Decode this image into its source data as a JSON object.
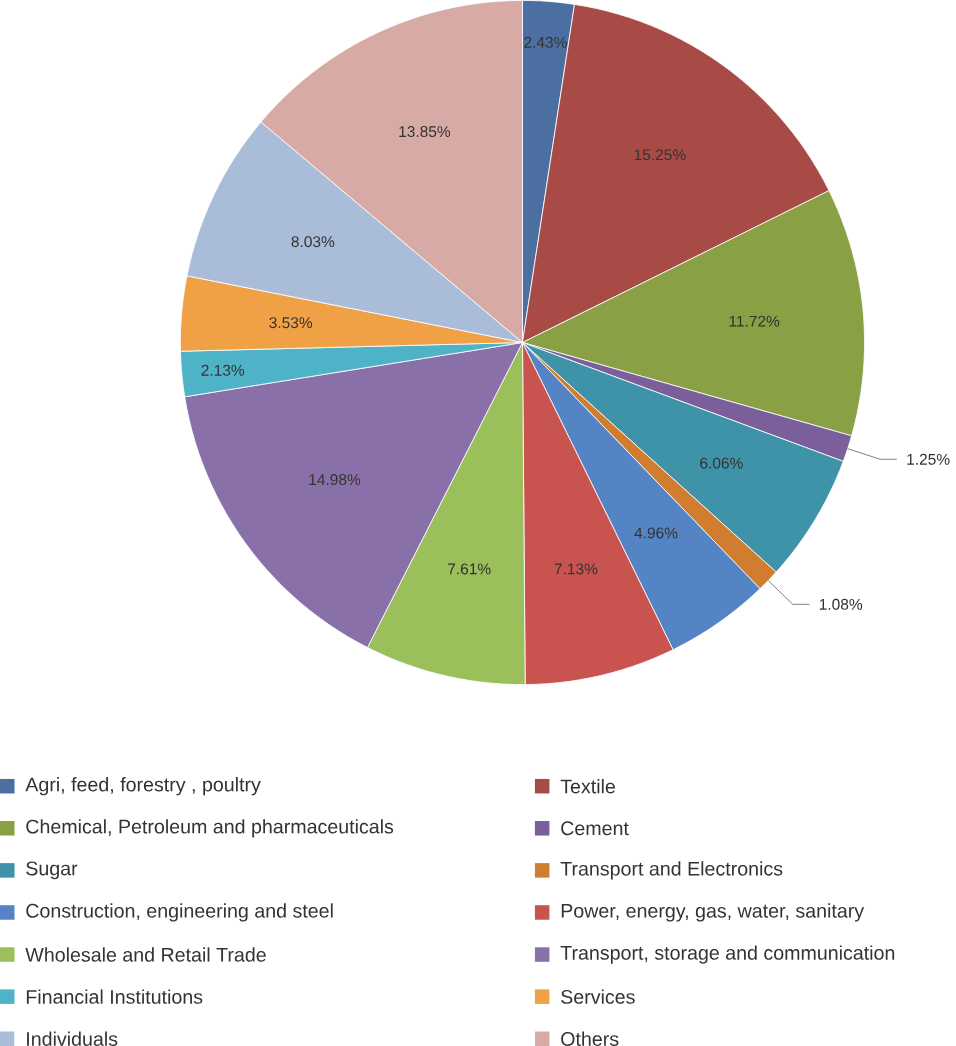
{
  "chart_data": {
    "type": "pie",
    "legend": "bottom",
    "categories": [
      "Agri, feed, forestry , poultry",
      "Textile",
      "Chemical, Petroleum and pharmaceuticals",
      "Cement",
      "Sugar",
      "Transport and Electronics",
      "Construction, engineering and steel",
      "Power, energy, gas, water, sanitary",
      "Wholesale and Retail Trade",
      "Transport, storage and communication",
      "Financial Institutions",
      "Services",
      "Individuals",
      "Others"
    ],
    "values": [
      2.43,
      15.25,
      11.72,
      1.25,
      6.06,
      1.08,
      4.96,
      7.13,
      7.61,
      14.98,
      2.13,
      3.53,
      8.03,
      13.85
    ],
    "value_labels": [
      "2.43%",
      "15.25%",
      "11.72%",
      "1.25%",
      "6.06%",
      "1.08%",
      "4.96%",
      "7.13%",
      "7.61%",
      "14.98%",
      "2.13%",
      "3.53%",
      "8.03%",
      "13.85%"
    ],
    "colors": [
      "#4a6fa0",
      "#a84a45",
      "#8aa044",
      "#7a5f9a",
      "#3f93a8",
      "#d07d2f",
      "#5584c4",
      "#c9534f",
      "#9bbf5a",
      "#8a70a8",
      "#4fb3c7",
      "#f0a045",
      "#a9bcd8",
      "#d7aaa5"
    ]
  }
}
